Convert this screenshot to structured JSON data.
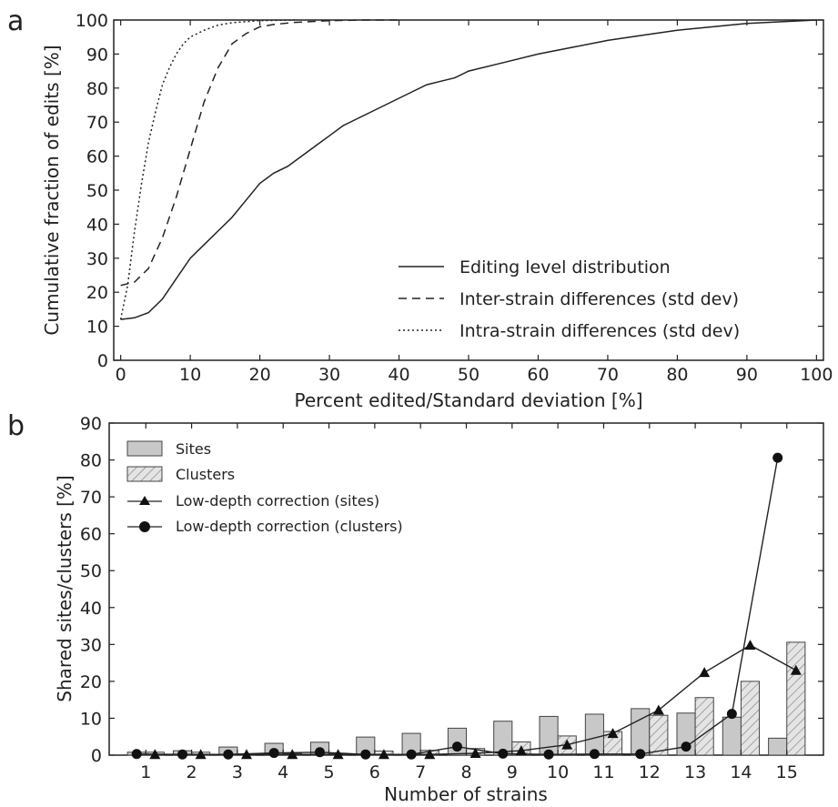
{
  "chart_data": [
    {
      "type": "line",
      "panel_label": "a",
      "xlabel": "Percent edited/Standard deviation [%]",
      "ylabel": "Cumulative fraction of edits [%]",
      "xlim": [
        0,
        100
      ],
      "ylim": [
        0,
        100
      ],
      "xticks": [
        0,
        10,
        20,
        30,
        40,
        50,
        60,
        70,
        80,
        90,
        100
      ],
      "yticks": [
        0,
        10,
        20,
        30,
        40,
        50,
        60,
        70,
        80,
        90,
        100
      ],
      "legend_position": "bottom-right",
      "series": [
        {
          "name": "Editing level distribution",
          "style": "solid",
          "x": [
            0,
            2,
            4,
            6,
            8,
            10,
            12,
            14,
            16,
            18,
            20,
            22,
            24,
            26,
            28,
            30,
            32,
            34,
            36,
            38,
            40,
            42,
            44,
            46,
            48,
            50,
            55,
            60,
            65,
            70,
            75,
            80,
            85,
            90,
            95,
            100
          ],
          "y": [
            12,
            12.5,
            14,
            18,
            24,
            30,
            34,
            38,
            42,
            47,
            52,
            55,
            57,
            60,
            63,
            66,
            69,
            71,
            73,
            75,
            77,
            79,
            81,
            82,
            83,
            85,
            87.5,
            90,
            92,
            94,
            95.5,
            97,
            98,
            99,
            99.5,
            100
          ]
        },
        {
          "name": "Inter-strain differences (std dev)",
          "style": "dashed",
          "x": [
            0,
            2,
            4,
            6,
            8,
            10,
            12,
            14,
            16,
            18,
            20,
            22,
            25,
            30,
            35,
            40
          ],
          "y": [
            22,
            23,
            27,
            36,
            48,
            62,
            76,
            86,
            93,
            96,
            98,
            98.7,
            99.3,
            99.8,
            100,
            100
          ]
        },
        {
          "name": "Intra-strain differences (std dev)",
          "style": "dotted",
          "x": [
            0,
            1,
            2,
            3,
            4,
            5,
            6,
            7,
            8,
            9,
            10,
            12,
            14,
            16,
            20,
            25
          ],
          "y": [
            12,
            22,
            38,
            52,
            64,
            73,
            81,
            86,
            90,
            93,
            95,
            97,
            98.5,
            99.2,
            99.8,
            100
          ]
        }
      ]
    },
    {
      "type": "bar",
      "panel_label": "b",
      "xlabel": "Number of strains",
      "ylabel": "Shared sites/clusters [%]",
      "ylim": [
        0,
        90
      ],
      "yticks": [
        0,
        10,
        20,
        30,
        40,
        50,
        60,
        70,
        80,
        90
      ],
      "categories": [
        "1",
        "2",
        "3",
        "4",
        "5",
        "6",
        "7",
        "8",
        "9",
        "10",
        "11",
        "12",
        "13",
        "14",
        "15"
      ],
      "legend_position": "top-left",
      "series": [
        {
          "name": "Sites",
          "kind": "bar",
          "style": "gray",
          "values": [
            0.8,
            1.2,
            2.2,
            3.2,
            3.5,
            4.9,
            5.9,
            7.3,
            9.2,
            10.5,
            11.1,
            12.6,
            11.4,
            10.3,
            4.6
          ]
        },
        {
          "name": "Clusters",
          "kind": "bar",
          "style": "hatched",
          "values": [
            0.8,
            0.8,
            0.3,
            0.5,
            0.5,
            1.1,
            1.3,
            1.8,
            3.6,
            5.2,
            6.4,
            10.8,
            15.6,
            20.0,
            30.6
          ]
        },
        {
          "name": "Low-depth correction (sites)",
          "kind": "line",
          "marker": "triangle",
          "values": [
            0.2,
            0.2,
            0.2,
            0.2,
            0.2,
            0.2,
            0.2,
            0.5,
            1.2,
            2.8,
            5.9,
            12.2,
            22.4,
            29.8,
            23.0
          ]
        },
        {
          "name": "Low-depth correction (clusters)",
          "kind": "line",
          "marker": "circle",
          "values": [
            0.3,
            0.2,
            0.2,
            0.6,
            0.8,
            0.2,
            0.2,
            2.3,
            0.4,
            0.2,
            0.3,
            0.3,
            2.3,
            11.2,
            80.6
          ]
        }
      ]
    }
  ]
}
